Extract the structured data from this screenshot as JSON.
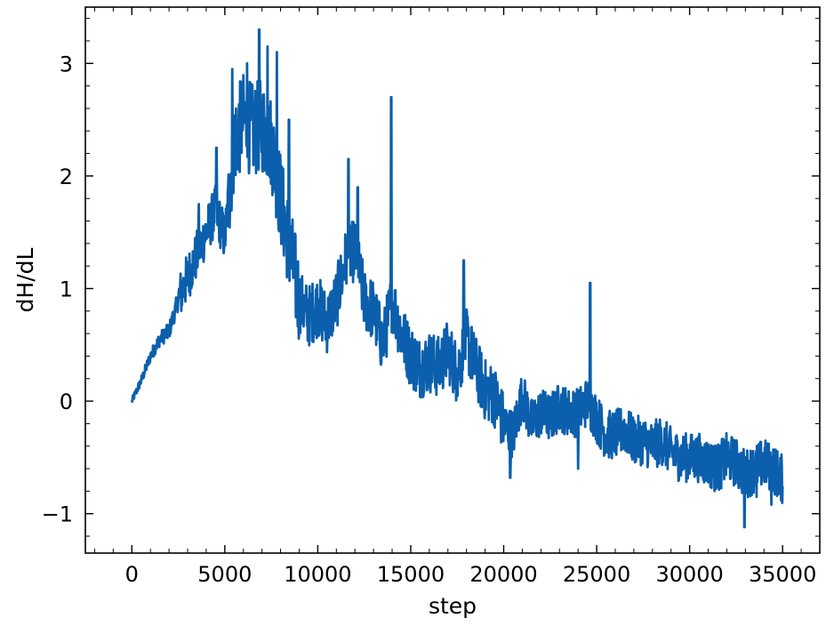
{
  "chart_data": {
    "type": "line",
    "title": "",
    "xlabel": "step",
    "ylabel": "dH/dL",
    "xlim": [
      -2500,
      37000
    ],
    "ylim": [
      -1.35,
      3.5
    ],
    "xticks": [
      0,
      5000,
      10000,
      15000,
      20000,
      25000,
      30000,
      35000
    ],
    "xtick_labels": [
      "0",
      "5000",
      "10000",
      "15000",
      "20000",
      "25000",
      "30000",
      "35000"
    ],
    "yticks": [
      -1,
      0,
      1,
      2,
      3
    ],
    "ytick_labels": [
      "−1",
      "0",
      "1",
      "2",
      "3"
    ],
    "x_minor_step": 1000,
    "y_minor_step": 0.2,
    "ticks_direction": "in",
    "ticks_on_all_sides": true,
    "grid": false,
    "legend": null,
    "line_color": "#0b5fac",
    "series": [
      {
        "x": [
          0,
          500,
          1000,
          1500,
          2000,
          2500,
          3000,
          3500,
          4000,
          4500,
          5000,
          5500,
          6000,
          6500,
          7000,
          7500,
          8000,
          8500,
          9000,
          9500,
          10000,
          10500,
          11000,
          11500,
          12000,
          12500,
          13000,
          13500,
          14000,
          14500,
          15000,
          15500,
          16000,
          16500,
          17000,
          17500,
          18000,
          18500,
          19000,
          19500,
          20000,
          20500,
          21000,
          21500,
          22000,
          22500,
          23000,
          23500,
          24000,
          24500,
          25000,
          25500,
          26000,
          26500,
          27000,
          27500,
          28000,
          28500,
          29000,
          29500,
          30000,
          30500,
          31000,
          31500,
          32000,
          32500,
          33000,
          33500,
          34000,
          34500,
          35000
        ],
        "values": [
          0.0,
          0.18,
          0.4,
          0.55,
          0.62,
          0.9,
          1.1,
          1.3,
          1.5,
          1.7,
          1.45,
          2.3,
          2.5,
          2.4,
          2.45,
          2.3,
          1.8,
          1.35,
          0.9,
          0.75,
          0.85,
          0.7,
          0.9,
          1.25,
          1.35,
          0.9,
          0.8,
          0.5,
          0.9,
          0.6,
          0.4,
          0.3,
          0.35,
          0.3,
          0.45,
          0.25,
          0.55,
          0.3,
          0.1,
          0.05,
          -0.2,
          -0.3,
          0.05,
          -0.2,
          -0.1,
          -0.15,
          -0.05,
          -0.1,
          -0.1,
          0.0,
          -0.15,
          -0.3,
          -0.3,
          -0.25,
          -0.35,
          -0.35,
          -0.4,
          -0.35,
          -0.45,
          -0.5,
          -0.5,
          -0.5,
          -0.55,
          -0.6,
          -0.5,
          -0.55,
          -0.65,
          -0.6,
          -0.55,
          -0.6,
          -0.7
        ],
        "spikes": [
          {
            "x": 3600,
            "y": 1.75
          },
          {
            "x": 4550,
            "y": 2.25
          },
          {
            "x": 5400,
            "y": 2.95
          },
          {
            "x": 6200,
            "y": 3.0
          },
          {
            "x": 6850,
            "y": 3.3
          },
          {
            "x": 7300,
            "y": 3.15
          },
          {
            "x": 7800,
            "y": 3.1
          },
          {
            "x": 8450,
            "y": 2.5
          },
          {
            "x": 11650,
            "y": 2.15
          },
          {
            "x": 12150,
            "y": 1.9
          },
          {
            "x": 13950,
            "y": 2.7
          },
          {
            "x": 17850,
            "y": 1.25
          },
          {
            "x": 24650,
            "y": 1.05
          },
          {
            "x": 24000,
            "y": -0.6
          },
          {
            "x": 20350,
            "y": -0.68
          },
          {
            "x": 32950,
            "y": -1.12
          },
          {
            "x": 33600,
            "y": -0.85
          },
          {
            "x": 34400,
            "y": -0.92
          }
        ]
      }
    ]
  }
}
